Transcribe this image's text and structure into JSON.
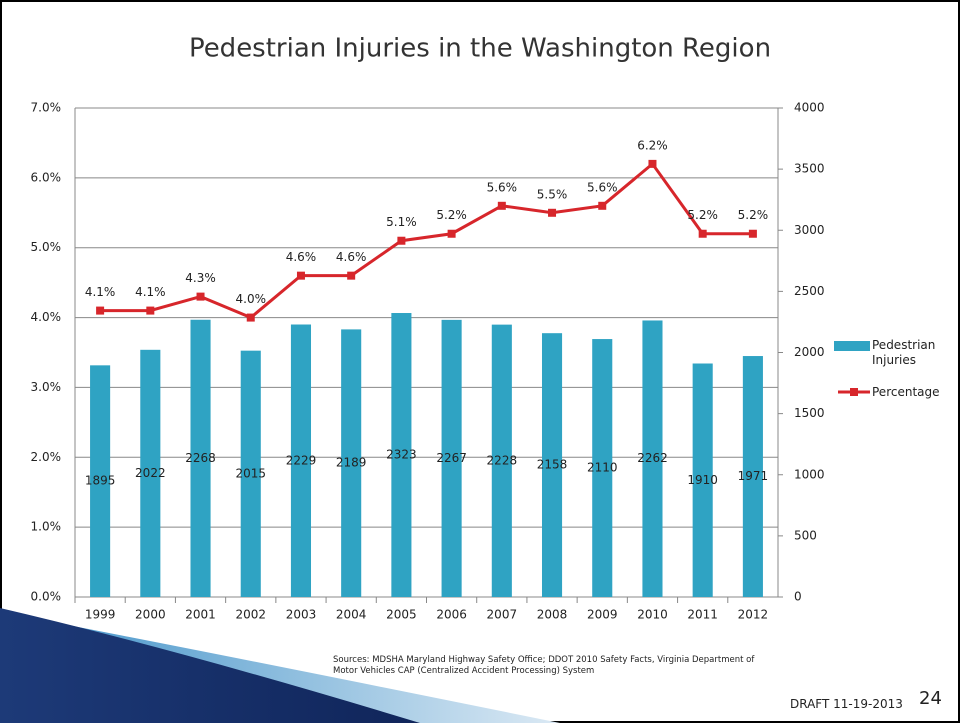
{
  "chart_data": {
    "type": "bar_line",
    "title": "Pedestrian Injuries in the Washington Region",
    "categories": [
      "1999",
      "2000",
      "2001",
      "2002",
      "2003",
      "2004",
      "2005",
      "2006",
      "2007",
      "2008",
      "2009",
      "2010",
      "2011",
      "2012"
    ],
    "series": [
      {
        "name": "Pedestrian Injuries",
        "type": "bar",
        "axis": "y2",
        "color": "#2fa3c3",
        "values": [
          1895,
          2022,
          2268,
          2015,
          2229,
          2189,
          2323,
          2267,
          2228,
          2158,
          2110,
          2262,
          1910,
          1971
        ]
      },
      {
        "name": "Percentage",
        "type": "line",
        "axis": "y",
        "color": "#d7262b",
        "values": [
          4.1,
          4.1,
          4.3,
          4.0,
          4.6,
          4.6,
          5.1,
          5.2,
          5.6,
          5.5,
          5.6,
          6.2,
          5.2,
          5.2
        ],
        "value_labels": [
          "4.1%",
          "4.1%",
          "4.3%",
          "4.0%",
          "4.6%",
          "4.6%",
          "5.1%",
          "5.2%",
          "5.6%",
          "5.5%",
          "5.6%",
          "6.2%",
          "5.2%",
          "5.2%"
        ]
      }
    ],
    "ylim": [
      0,
      7
    ],
    "yticks": [
      {
        "value": 0,
        "label": "0.0%"
      },
      {
        "value": 1,
        "label": "1.0%"
      },
      {
        "value": 2,
        "label": "2.0%"
      },
      {
        "value": 3,
        "label": "3.0%"
      },
      {
        "value": 4,
        "label": "4.0%"
      },
      {
        "value": 5,
        "label": "5.0%"
      },
      {
        "value": 6,
        "label": "6.0%"
      },
      {
        "value": 7,
        "label": "7.0%"
      }
    ],
    "y2lim": [
      0,
      4000
    ],
    "y2ticks": [
      0,
      500,
      1000,
      1500,
      2000,
      2500,
      3000,
      3500,
      4000
    ],
    "grid": true,
    "legend": "right"
  },
  "slide": {
    "sources": "Sources: MDSHA Maryland Highway Safety Office; DDOT 2010 Safety Facts, Virginia Department of Motor Vehicles CAP (Centralized Accident Processing) System",
    "draft": "DRAFT 11-19-2013",
    "page_number": "24"
  }
}
